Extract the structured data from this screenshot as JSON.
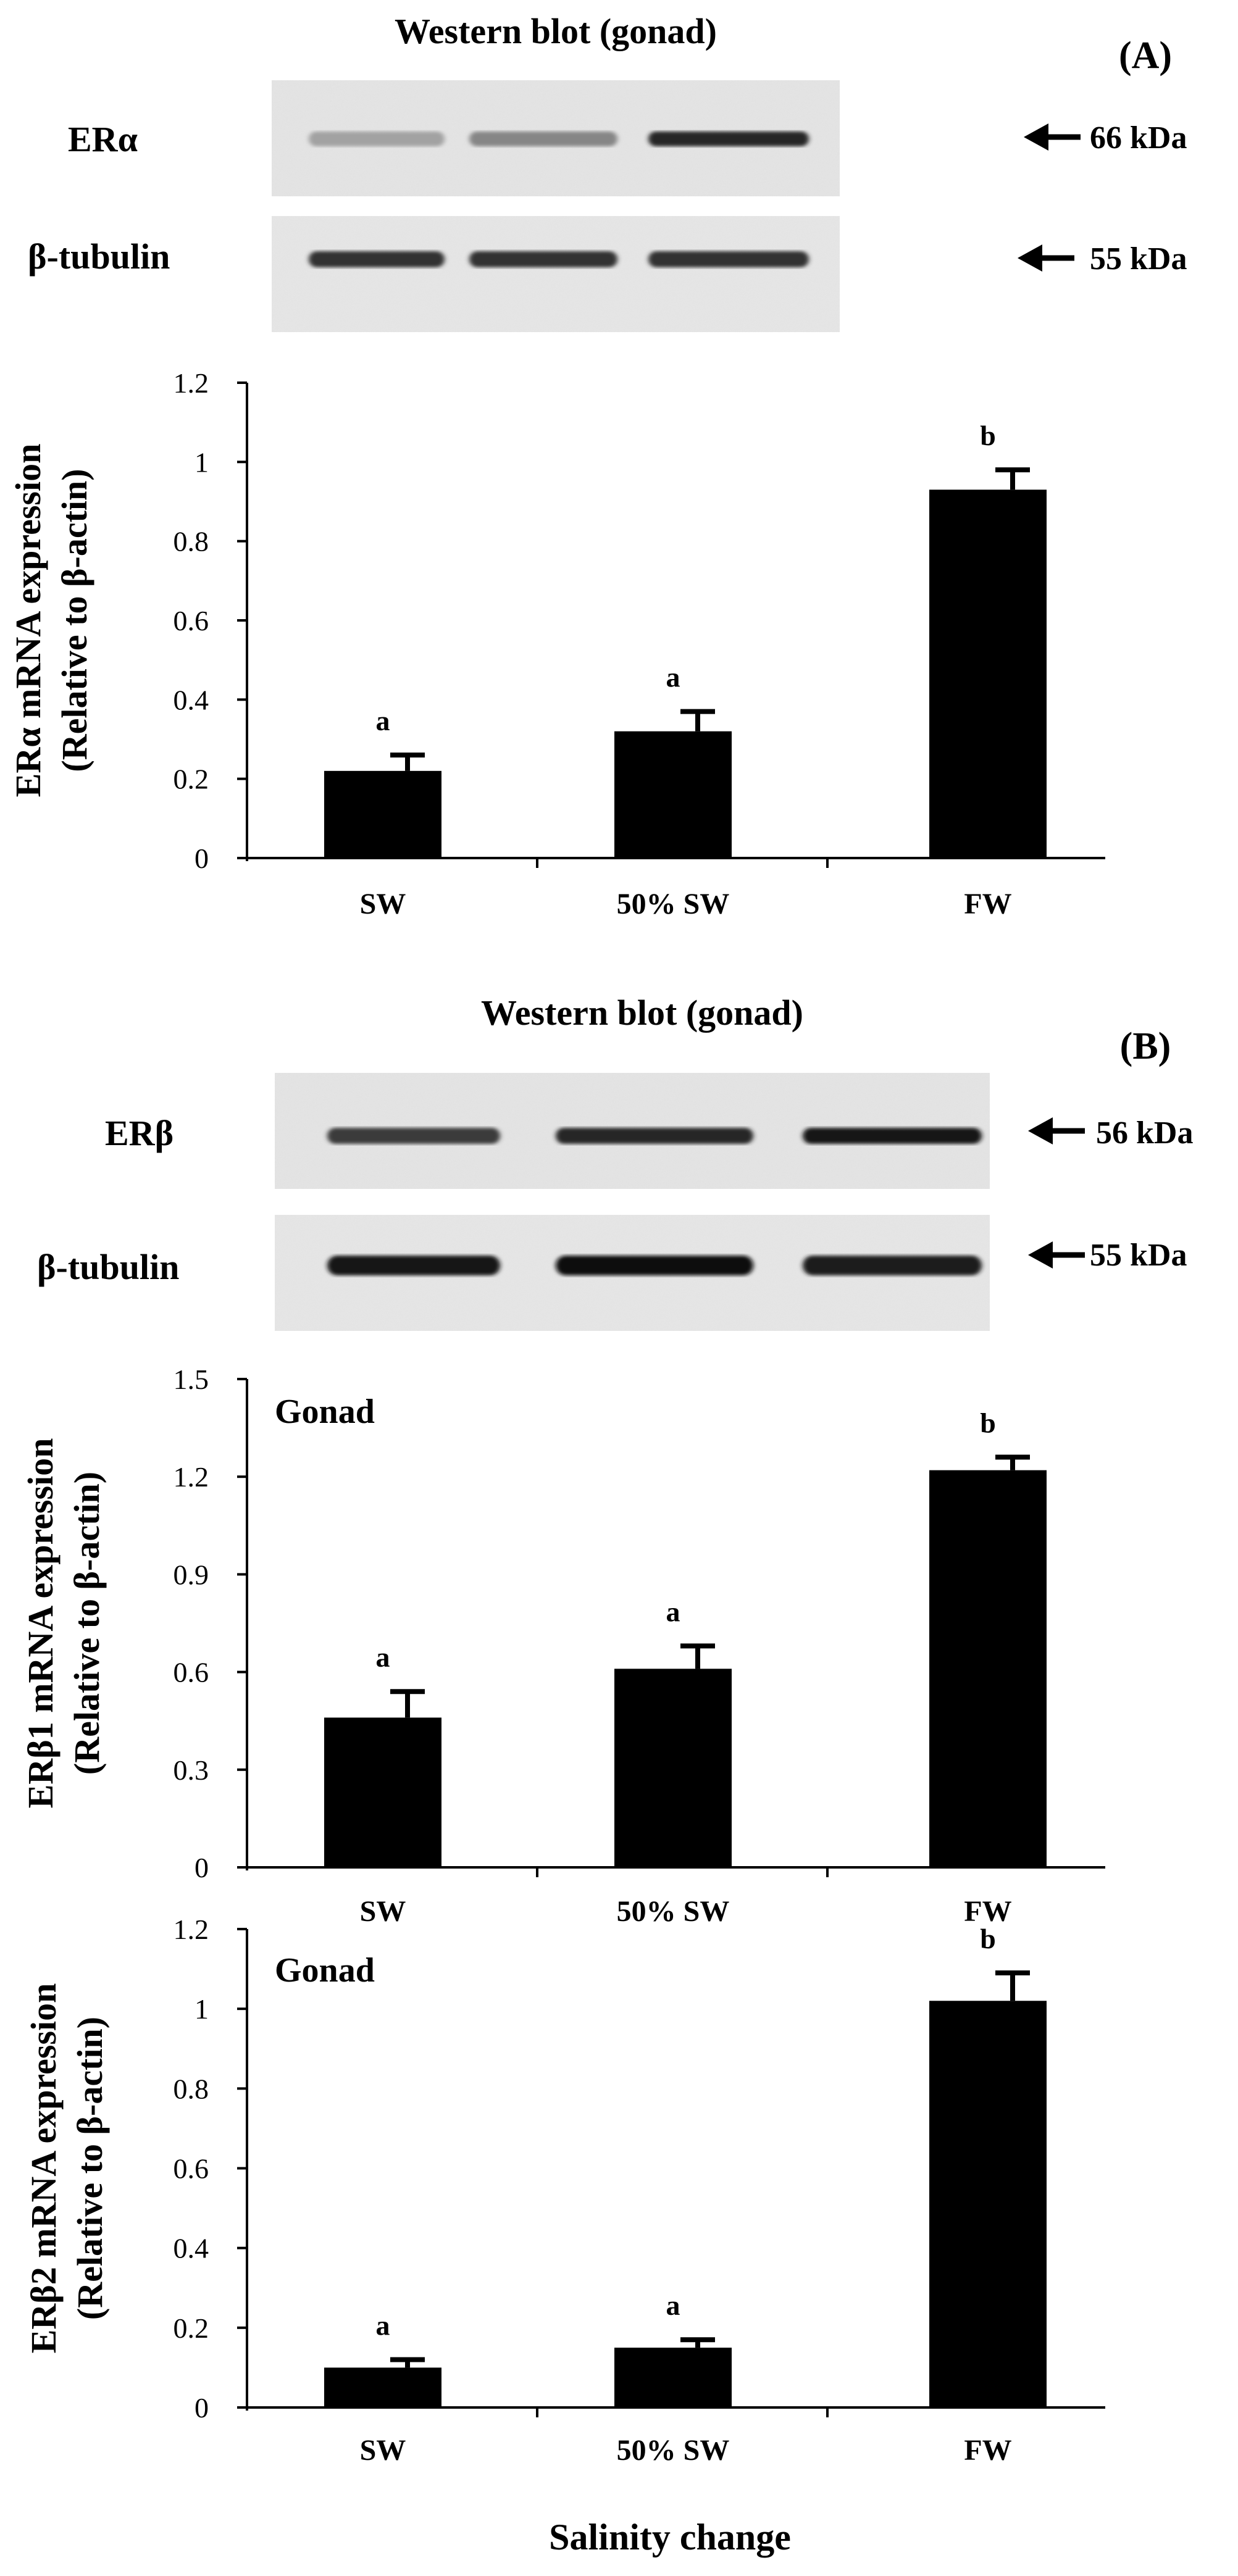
{
  "panel_a": {
    "label": "(A)",
    "blot_title": "Western blot (gonad)",
    "bands": [
      {
        "name": "ERα",
        "size": "66 kDa",
        "intensity": [
          0.2,
          0.35,
          0.85
        ]
      },
      {
        "name": "β-tubulin",
        "size": "55 kDa",
        "intensity": [
          0.8,
          0.8,
          0.8
        ]
      }
    ]
  },
  "panel_b": {
    "label": "(B)",
    "blot_title": "Western blot (gonad)",
    "bands": [
      {
        "name": "ERβ",
        "size": "56 kDa",
        "intensity": [
          0.75,
          0.85,
          0.95
        ]
      },
      {
        "name": "β-tubulin",
        "size": "55 kDa",
        "intensity": [
          0.95,
          1.0,
          0.9
        ]
      }
    ]
  },
  "xlabel": "Salinity change",
  "chart_data": [
    {
      "type": "bar",
      "categories": [
        "SW",
        "50% SW",
        "FW"
      ],
      "values": [
        0.22,
        0.32,
        0.93
      ],
      "errors": [
        0.04,
        0.05,
        0.05
      ],
      "letters": [
        "a",
        "a",
        "b"
      ],
      "ylabel_line1": "ERα mRNA  expression",
      "ylabel_line2": "(Relative to β-actin)",
      "ylim": [
        0,
        1.2
      ],
      "ticks": [
        "0",
        "0.2",
        "0.4",
        "0.6",
        "0.8",
        "1",
        "1.2"
      ],
      "inset": ""
    },
    {
      "type": "bar",
      "categories": [
        "SW",
        "50% SW",
        "FW"
      ],
      "values": [
        0.46,
        0.61,
        1.22
      ],
      "errors": [
        0.08,
        0.07,
        0.04
      ],
      "letters": [
        "a",
        "a",
        "b"
      ],
      "ylabel_line1": "ERβ1 mRNA  expression",
      "ylabel_line2": "(Relative to β-actin)",
      "ylim": [
        0,
        1.5
      ],
      "ticks": [
        "0",
        "0.3",
        "0.6",
        "0.9",
        "1.2",
        "1.5"
      ],
      "inset": "Gonad"
    },
    {
      "type": "bar",
      "categories": [
        "SW",
        "50% SW",
        "FW"
      ],
      "values": [
        0.1,
        0.15,
        1.02
      ],
      "errors": [
        0.02,
        0.02,
        0.07
      ],
      "letters": [
        "a",
        "a",
        "b"
      ],
      "ylabel_line1": "ERβ2 mRNA expression",
      "ylabel_line2": "(Relative to β-actin)",
      "ylim": [
        0,
        1.2
      ],
      "ticks": [
        "0",
        "0.2",
        "0.4",
        "0.6",
        "0.8",
        "1",
        "1.2"
      ],
      "inset": "Gonad"
    }
  ]
}
